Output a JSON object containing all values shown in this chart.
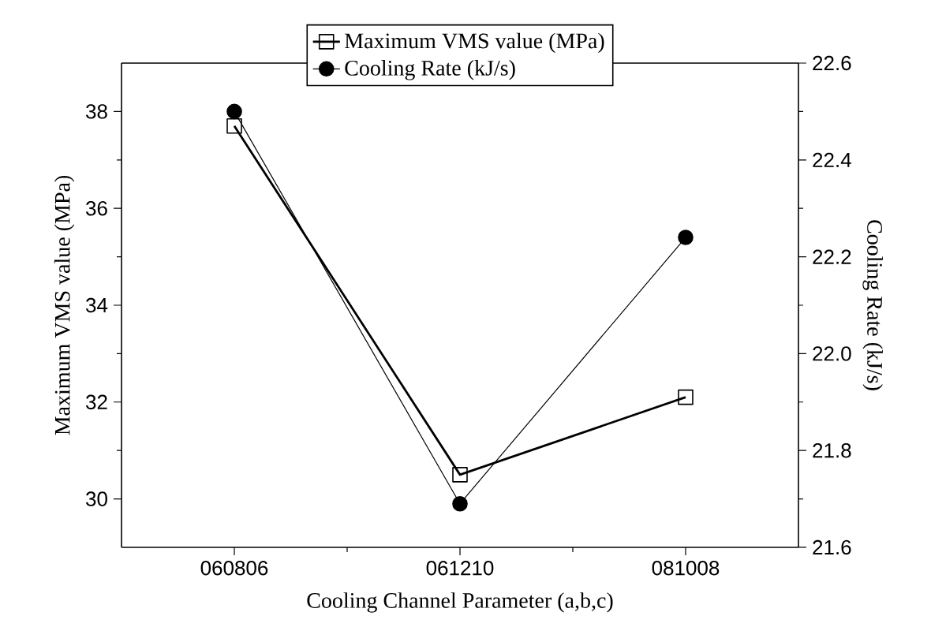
{
  "chart_data": {
    "type": "line",
    "xlabel": "Cooling Channel Parameter (a,b,c)",
    "ylabel": "Maximum VMS value (MPa)",
    "y2label": "Cooling Rate (kJ/s)",
    "categories": [
      "060806",
      "061210",
      "081008"
    ],
    "series": [
      {
        "name": "Maximum VMS value (MPa)",
        "color": "#000000",
        "marker": "square",
        "values": [
          37.7,
          30.5,
          32.1
        ]
      },
      {
        "name": "Cooling Rate (kJ/s)",
        "color": "#000000",
        "marker": "circle",
        "axis": "y2",
        "values": [
          22.5,
          21.69,
          22.24
        ]
      }
    ],
    "ylim": [
      29,
      39
    ],
    "yticks": [
      30,
      32,
      34,
      36,
      38
    ],
    "y2lim": [
      21.6,
      22.6
    ],
    "y2ticks": [
      {
        "value": 21.6,
        "label": "21.6"
      },
      {
        "value": 21.8,
        "label": "21.8"
      },
      {
        "value": 22.0,
        "label": "22.0"
      },
      {
        "value": 22.2,
        "label": "22.2"
      },
      {
        "value": 22.4,
        "label": "22.4"
      },
      {
        "value": 22.6,
        "label": "22.6"
      }
    ],
    "legend": "top",
    "grid": false
  }
}
